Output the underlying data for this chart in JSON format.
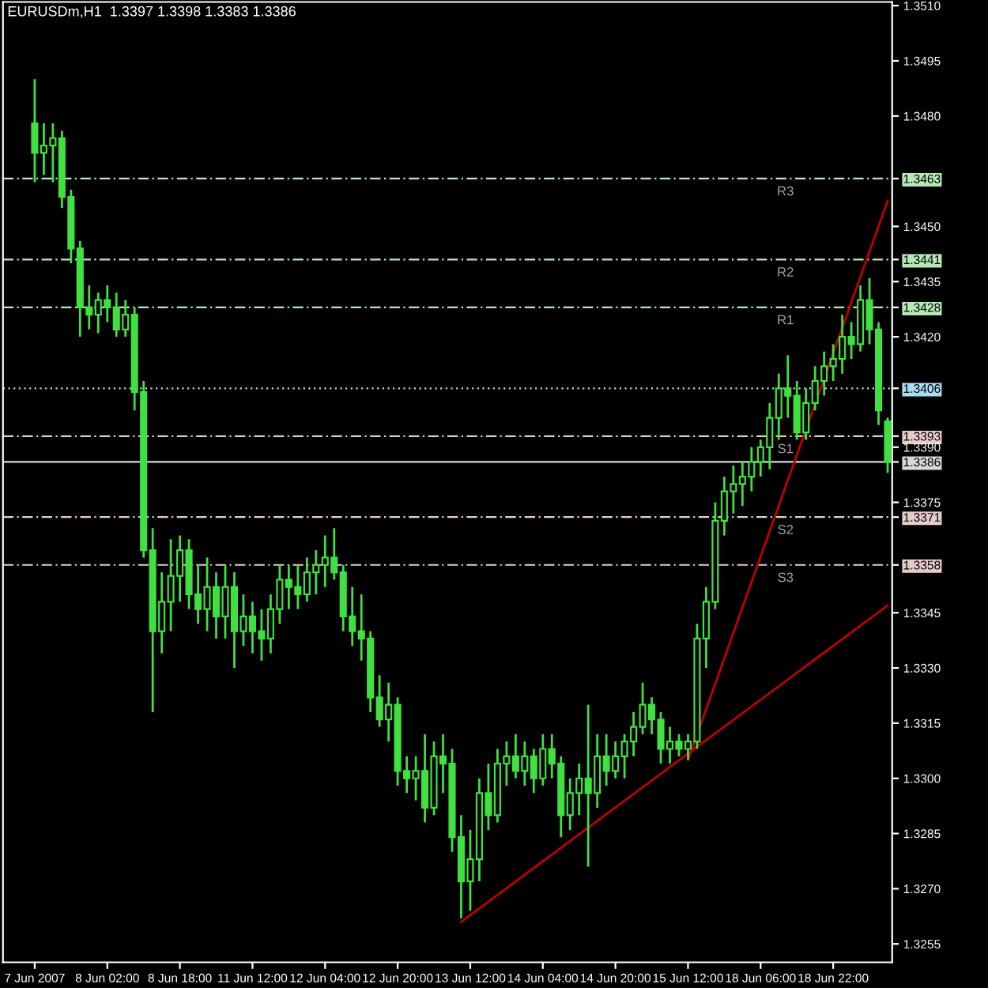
{
  "chart_data": {
    "type": "candlestick",
    "title": "EURUSDm,H1  1.3397 1.3398 1.3383 1.3386",
    "categories": [
      "7 Jun 2007",
      null,
      null,
      null,
      null,
      null,
      null,
      null,
      "8 Jun 02:00",
      null,
      null,
      null,
      null,
      null,
      null,
      null,
      "8 Jun 18:00",
      null,
      null,
      null,
      null,
      null,
      null,
      null,
      "11 Jun 12:00",
      null,
      null,
      null,
      null,
      null,
      null,
      null,
      "12 Jun 04:00",
      null,
      null,
      null,
      null,
      null,
      null,
      null,
      "12 Jun 20:00",
      null,
      null,
      null,
      null,
      null,
      null,
      null,
      "13 Jun 12:00",
      null,
      null,
      null,
      null,
      null,
      null,
      null,
      "14 Jun 04:00",
      null,
      null,
      null,
      null,
      null,
      null,
      null,
      "14 Jun 20:00",
      null,
      null,
      null,
      null,
      null,
      null,
      null,
      "15 Jun 12:00",
      null,
      null,
      null,
      null,
      null,
      null,
      null,
      "18 Jun 06:00",
      null,
      null,
      null,
      null,
      null,
      null,
      null,
      "18 Jun 22:00",
      null,
      null,
      null,
      null,
      null,
      null
    ],
    "series": [
      {
        "color": "#40e040",
        "ohlc": [
          [
            1.3478,
            1.349,
            1.3462,
            1.347
          ],
          [
            1.347,
            1.3478,
            1.3464,
            1.3472
          ],
          [
            1.3472,
            1.3478,
            1.3462,
            1.3474
          ],
          [
            1.3474,
            1.3476,
            1.3455,
            1.3458
          ],
          [
            1.3458,
            1.346,
            1.344,
            1.3444
          ],
          [
            1.3444,
            1.3446,
            1.342,
            1.3428
          ],
          [
            1.3428,
            1.3434,
            1.3422,
            1.3426
          ],
          [
            1.3426,
            1.3432,
            1.3421,
            1.343
          ],
          [
            1.343,
            1.3434,
            1.3424,
            1.3428
          ],
          [
            1.3428,
            1.3432,
            1.342,
            1.3422
          ],
          [
            1.3422,
            1.343,
            1.342,
            1.3426
          ],
          [
            1.3426,
            1.3428,
            1.34,
            1.3405
          ],
          [
            1.3405,
            1.3408,
            1.336,
            1.3362
          ],
          [
            1.3362,
            1.3368,
            1.3318,
            1.334
          ],
          [
            1.334,
            1.3356,
            1.3334,
            1.3348
          ],
          [
            1.3348,
            1.3365,
            1.334,
            1.3355
          ],
          [
            1.3355,
            1.3366,
            1.3348,
            1.3362
          ],
          [
            1.3362,
            1.3365,
            1.3346,
            1.335
          ],
          [
            1.335,
            1.3358,
            1.3342,
            1.3346
          ],
          [
            1.3346,
            1.336,
            1.334,
            1.3352
          ],
          [
            1.3352,
            1.3356,
            1.3338,
            1.3344
          ],
          [
            1.3344,
            1.3358,
            1.3338,
            1.3352
          ],
          [
            1.3352,
            1.3356,
            1.333,
            1.334
          ],
          [
            1.334,
            1.335,
            1.3336,
            1.3344
          ],
          [
            1.3344,
            1.3348,
            1.3334,
            1.334
          ],
          [
            1.334,
            1.3346,
            1.3332,
            1.3338
          ],
          [
            1.3338,
            1.335,
            1.3334,
            1.3346
          ],
          [
            1.3346,
            1.3358,
            1.3342,
            1.3354
          ],
          [
            1.3354,
            1.3358,
            1.3346,
            1.3352
          ],
          [
            1.3352,
            1.3358,
            1.3346,
            1.335
          ],
          [
            1.335,
            1.336,
            1.3348,
            1.3356
          ],
          [
            1.3356,
            1.3362,
            1.335,
            1.3358
          ],
          [
            1.3358,
            1.3366,
            1.3352,
            1.336
          ],
          [
            1.336,
            1.3368,
            1.3354,
            1.3356
          ],
          [
            1.3356,
            1.3358,
            1.334,
            1.3344
          ],
          [
            1.3344,
            1.3352,
            1.3336,
            1.334
          ],
          [
            1.334,
            1.335,
            1.3332,
            1.3338
          ],
          [
            1.3338,
            1.334,
            1.3318,
            1.3322
          ],
          [
            1.3322,
            1.3328,
            1.3314,
            1.3316
          ],
          [
            1.3316,
            1.3326,
            1.331,
            1.332
          ],
          [
            1.332,
            1.3322,
            1.3298,
            1.3302
          ],
          [
            1.3302,
            1.3306,
            1.3296,
            1.33
          ],
          [
            1.33,
            1.3306,
            1.3294,
            1.3302
          ],
          [
            1.3302,
            1.3312,
            1.3288,
            1.3292
          ],
          [
            1.3292,
            1.331,
            1.329,
            1.3306
          ],
          [
            1.3306,
            1.3312,
            1.3296,
            1.3304
          ],
          [
            1.3304,
            1.3308,
            1.328,
            1.3284
          ],
          [
            1.3284,
            1.329,
            1.3262,
            1.3272
          ],
          [
            1.3272,
            1.3286,
            1.3264,
            1.3278
          ],
          [
            1.3278,
            1.33,
            1.3272,
            1.3296
          ],
          [
            1.3296,
            1.3304,
            1.3286,
            1.329
          ],
          [
            1.329,
            1.3308,
            1.3288,
            1.3304
          ],
          [
            1.3304,
            1.331,
            1.3298,
            1.3306
          ],
          [
            1.3306,
            1.3312,
            1.33,
            1.3302
          ],
          [
            1.3302,
            1.331,
            1.3298,
            1.3306
          ],
          [
            1.3306,
            1.3308,
            1.3296,
            1.33
          ],
          [
            1.33,
            1.3312,
            1.3298,
            1.3308
          ],
          [
            1.3308,
            1.3312,
            1.33,
            1.3304
          ],
          [
            1.3304,
            1.3306,
            1.3284,
            1.329
          ],
          [
            1.329,
            1.33,
            1.3286,
            1.3296
          ],
          [
            1.3296,
            1.3304,
            1.329,
            1.33
          ],
          [
            1.33,
            1.332,
            1.3276,
            1.3296
          ],
          [
            1.3296,
            1.3312,
            1.3292,
            1.3306
          ],
          [
            1.3306,
            1.3312,
            1.3298,
            1.3302
          ],
          [
            1.3302,
            1.331,
            1.33,
            1.3306
          ],
          [
            1.3306,
            1.3312,
            1.33,
            1.331
          ],
          [
            1.331,
            1.3318,
            1.3306,
            1.3314
          ],
          [
            1.3314,
            1.3326,
            1.3312,
            1.332
          ],
          [
            1.332,
            1.3322,
            1.3312,
            1.3316
          ],
          [
            1.3316,
            1.3318,
            1.3304,
            1.3308
          ],
          [
            1.3308,
            1.3314,
            1.3304,
            1.331
          ],
          [
            1.331,
            1.3312,
            1.3306,
            1.3308
          ],
          [
            1.3308,
            1.3312,
            1.3305,
            1.331
          ],
          [
            1.331,
            1.3342,
            1.3308,
            1.3338
          ],
          [
            1.3338,
            1.3352,
            1.333,
            1.3348
          ],
          [
            1.3348,
            1.3375,
            1.3346,
            1.337
          ],
          [
            1.337,
            1.3382,
            1.3366,
            1.3378
          ],
          [
            1.3378,
            1.3385,
            1.3372,
            1.338
          ],
          [
            1.338,
            1.3386,
            1.3374,
            1.3382
          ],
          [
            1.3382,
            1.339,
            1.3378,
            1.3386
          ],
          [
            1.3386,
            1.3392,
            1.3382,
            1.339
          ],
          [
            1.339,
            1.3402,
            1.3384,
            1.3398
          ],
          [
            1.3398,
            1.341,
            1.3392,
            1.3406
          ],
          [
            1.3406,
            1.3415,
            1.3398,
            1.3404
          ],
          [
            1.3404,
            1.3408,
            1.3392,
            1.3394
          ],
          [
            1.3394,
            1.3406,
            1.3392,
            1.3402
          ],
          [
            1.3402,
            1.3412,
            1.34,
            1.3408
          ],
          [
            1.3408,
            1.3416,
            1.3404,
            1.3412
          ],
          [
            1.3412,
            1.3418,
            1.3408,
            1.3414
          ],
          [
            1.3414,
            1.3426,
            1.341,
            1.342
          ],
          [
            1.342,
            1.3424,
            1.3414,
            1.3418
          ],
          [
            1.3418,
            1.3434,
            1.3416,
            1.343
          ],
          [
            1.343,
            1.3436,
            1.3418,
            1.3422
          ],
          [
            1.3422,
            1.3424,
            1.3396,
            1.34
          ],
          [
            1.3397,
            1.3398,
            1.3383,
            1.3386
          ]
        ]
      },
      {
        "type": "line",
        "color": "#c00000",
        "values": [
          null,
          null,
          null,
          null,
          null,
          null,
          null,
          null,
          null,
          null,
          null,
          null,
          null,
          null,
          null,
          null,
          null,
          null,
          null,
          null,
          null,
          null,
          null,
          null,
          null,
          null,
          null,
          null,
          null,
          null,
          null,
          null,
          null,
          null,
          null,
          null,
          null,
          null,
          null,
          null,
          null,
          null,
          null,
          null,
          null,
          null,
          null,
          1.3261,
          null,
          null,
          null,
          null,
          null,
          null,
          null,
          null,
          null,
          null,
          null,
          null,
          null,
          null,
          null,
          null,
          null,
          null,
          null,
          null,
          null,
          null,
          null,
          null,
          null,
          null,
          null,
          null,
          null,
          null,
          null,
          null,
          null,
          null,
          null,
          null,
          null,
          null,
          null,
          null,
          null,
          null,
          null,
          null,
          null,
          null,
          1.3347
        ]
      },
      {
        "type": "line",
        "color": "#c00000",
        "values": [
          null,
          null,
          null,
          null,
          null,
          null,
          null,
          null,
          null,
          null,
          null,
          null,
          null,
          null,
          null,
          null,
          null,
          null,
          null,
          null,
          null,
          null,
          null,
          null,
          null,
          null,
          null,
          null,
          null,
          null,
          null,
          null,
          null,
          null,
          null,
          null,
          null,
          null,
          null,
          null,
          null,
          null,
          null,
          null,
          null,
          null,
          null,
          null,
          null,
          null,
          null,
          null,
          null,
          null,
          null,
          null,
          null,
          null,
          null,
          null,
          null,
          null,
          null,
          null,
          null,
          null,
          null,
          null,
          null,
          null,
          null,
          null,
          1.3305,
          null,
          null,
          null,
          null,
          null,
          null,
          null,
          null,
          null,
          null,
          null,
          null,
          null,
          null,
          null,
          null,
          null,
          null,
          null,
          null,
          null,
          1.3457
        ]
      }
    ],
    "ylim": [
      1.325,
      1.3511
    ],
    "yticks": [
      {
        "value": 1.351,
        "label": "1.3510"
      },
      {
        "value": 1.3495,
        "label": "1.3495"
      },
      {
        "value": 1.348,
        "label": "1.3480"
      },
      {
        "value": 1.3463,
        "label": "1.3463"
      },
      {
        "value": 1.345,
        "label": "1.3450"
      },
      {
        "value": 1.3441,
        "label": "1.3441"
      },
      {
        "value": 1.3435,
        "label": "1.3435"
      },
      {
        "value": 1.3428,
        "label": "1.3428"
      },
      {
        "value": 1.342,
        "label": "1.3420"
      },
      {
        "value": 1.3406,
        "label": "1.3406"
      },
      {
        "value": 1.3393,
        "label": "1.3393"
      },
      {
        "value": 1.339,
        "label": "1.3390"
      },
      {
        "value": 1.3386,
        "label": "1.3386"
      },
      {
        "value": 1.3375,
        "label": "1.3375"
      },
      {
        "value": 1.3371,
        "label": "1.3371"
      },
      {
        "value": 1.3358,
        "label": "1.3358"
      },
      {
        "value": 1.3345,
        "label": "1.3345"
      },
      {
        "value": 1.333,
        "label": "1.3330"
      },
      {
        "value": 1.3315,
        "label": "1.3315"
      },
      {
        "value": 1.33,
        "label": "1.3300"
      },
      {
        "value": 1.3285,
        "label": "1.3285"
      },
      {
        "value": 1.327,
        "label": "1.3270"
      },
      {
        "value": 1.3255,
        "label": "1.3255"
      }
    ],
    "ref_lines": [
      {
        "axis": "y",
        "value": 1.3463,
        "label": "R3",
        "color": "#b8e8b8",
        "line_style": "dashed"
      },
      {
        "axis": "y",
        "value": 1.3441,
        "label": "R2",
        "color": "#b8e8b8",
        "line_style": "dashed"
      },
      {
        "axis": "y",
        "value": 1.3428,
        "label": "R1",
        "color": "#b8e8b8",
        "line_style": "dashed"
      },
      {
        "axis": "y",
        "value": 1.3406,
        "color": "#a8dcf0",
        "line_style": "dotted"
      },
      {
        "axis": "y",
        "value": 1.3393,
        "label": "S1",
        "color": "#e8cccc",
        "line_style": "dashed"
      },
      {
        "axis": "y",
        "value": 1.3386,
        "color": "#d8d8d8",
        "line_style": "solid"
      },
      {
        "axis": "y",
        "value": 1.3371,
        "label": "S2",
        "color": "#e8cccc",
        "line_style": "dashed"
      },
      {
        "axis": "y",
        "value": 1.3358,
        "label": "S3",
        "color": "#e8cccc",
        "line_style": "dashed"
      }
    ],
    "grid": false
  }
}
